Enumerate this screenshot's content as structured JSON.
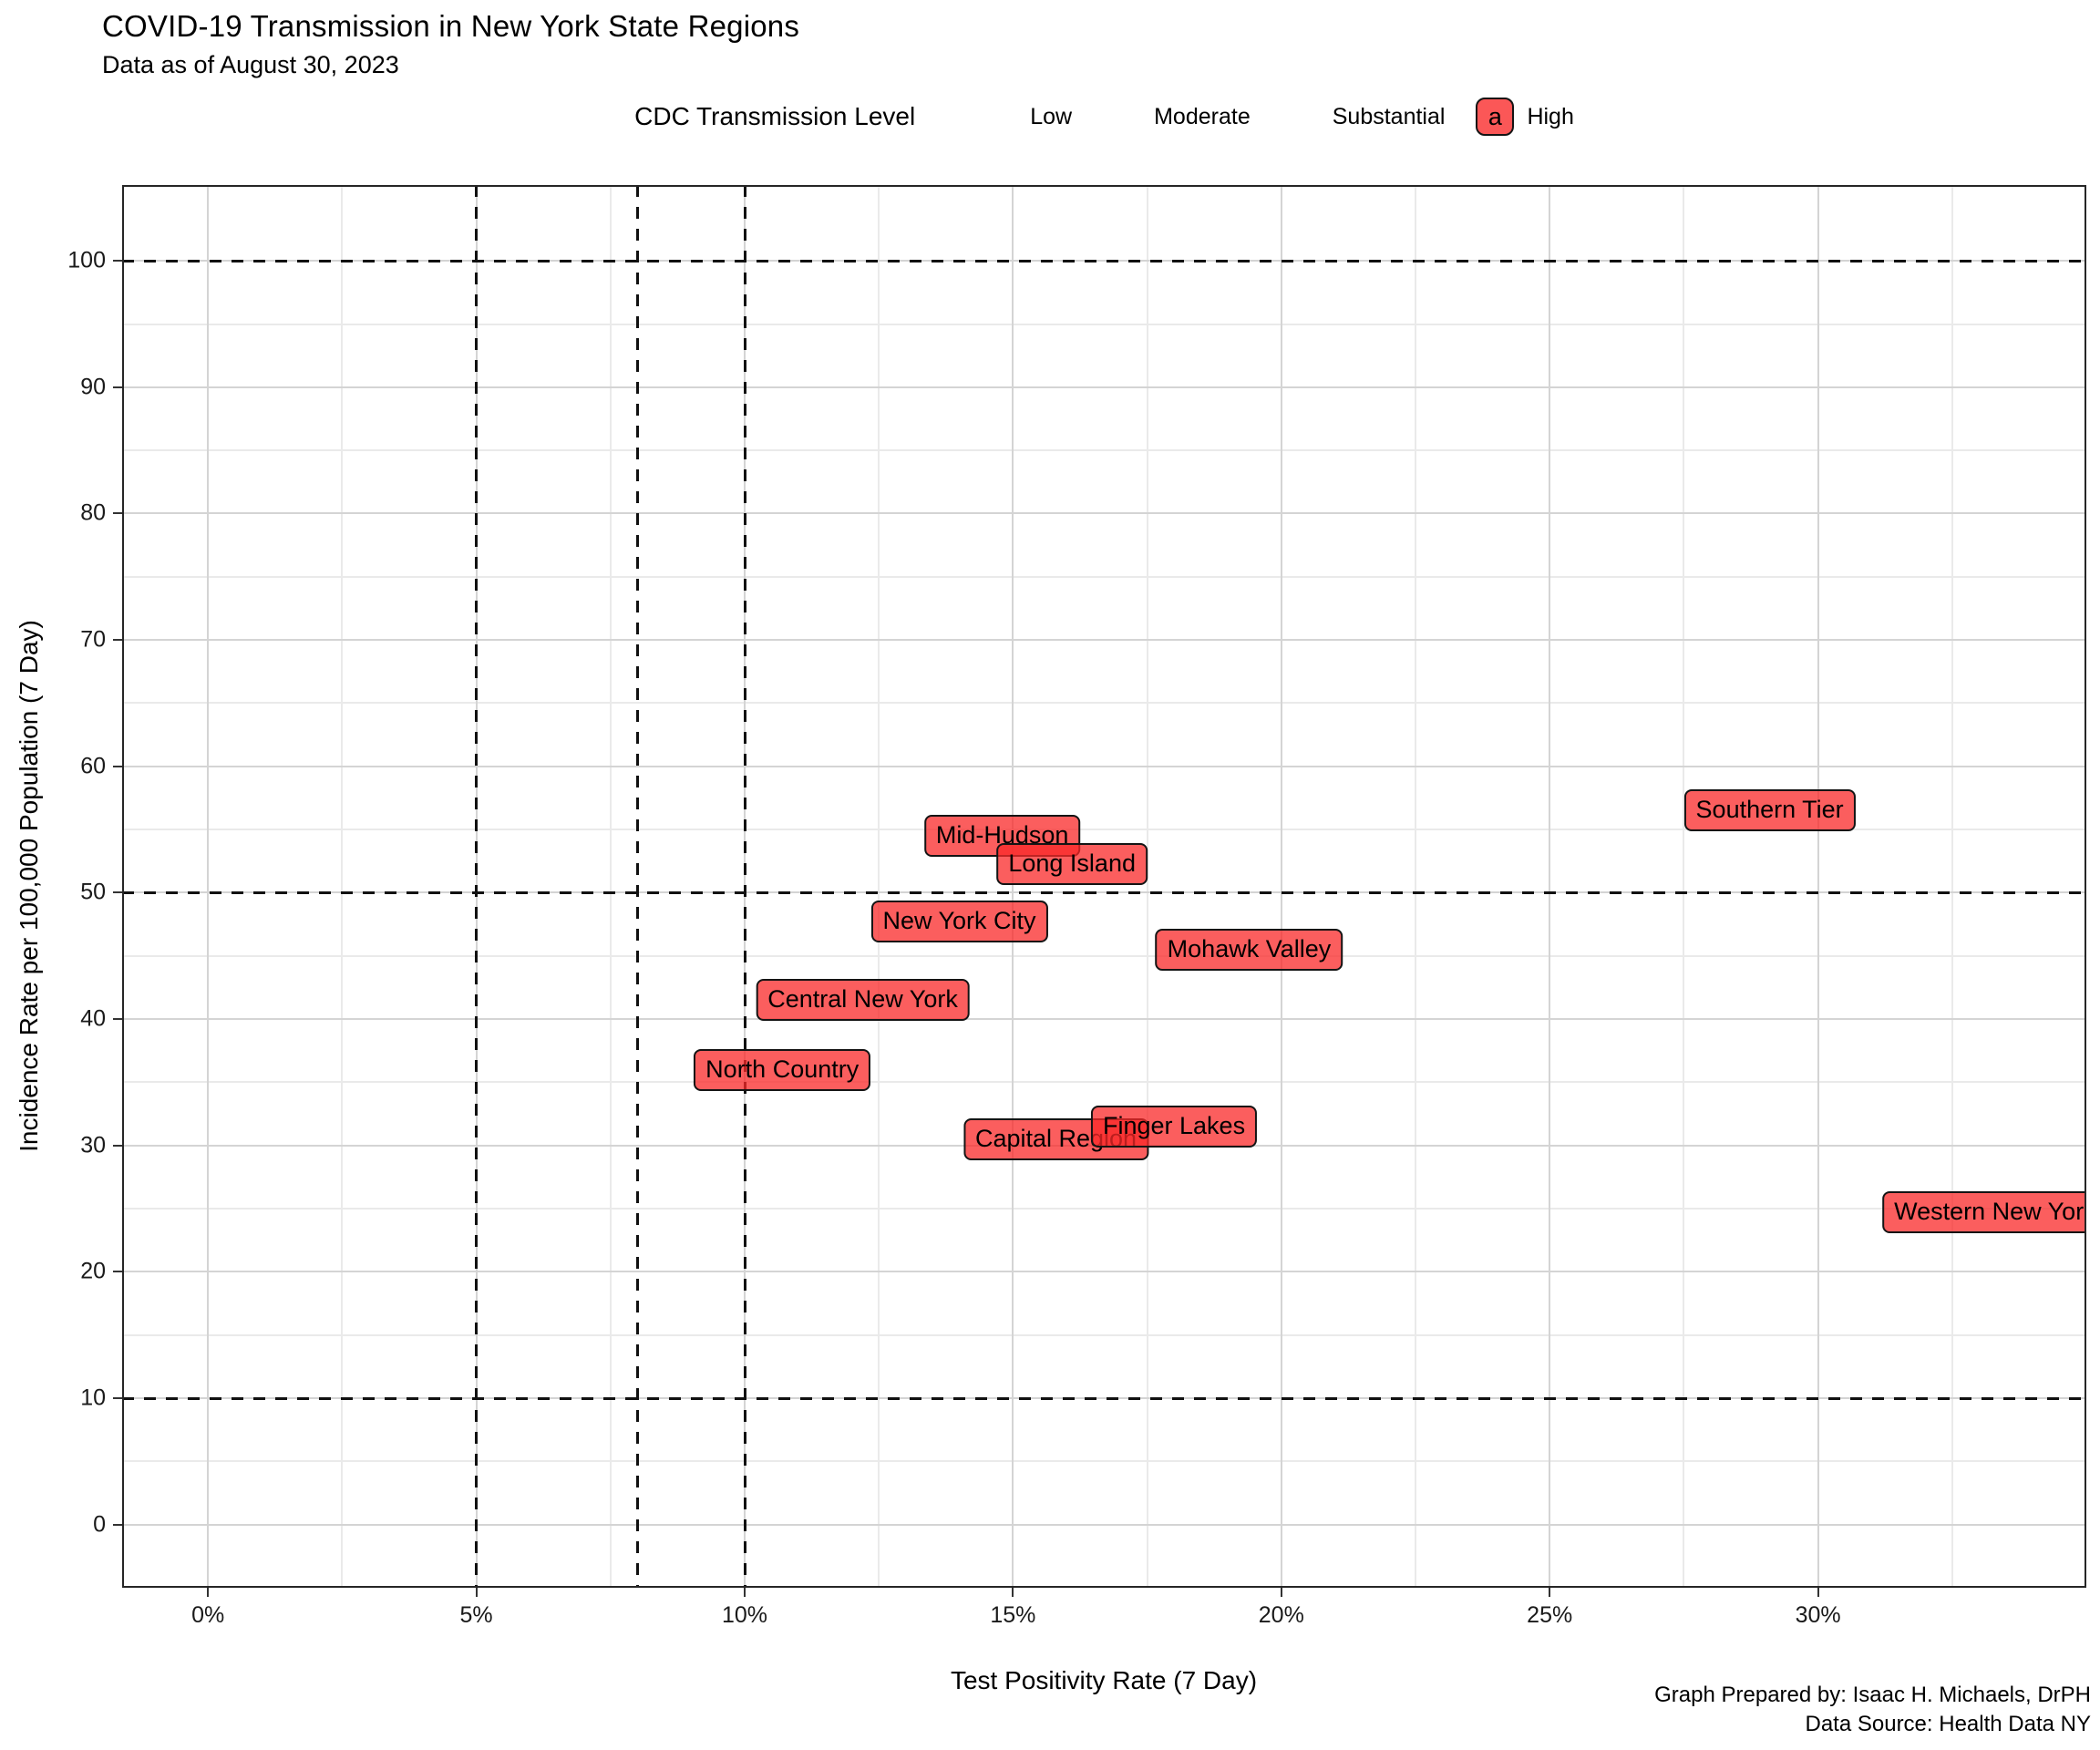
{
  "header": {
    "title": "COVID-19 Transmission in New York State Regions",
    "subtitle": "Data as of August 30, 2023"
  },
  "legend": {
    "title": "CDC Transmission Level",
    "items": [
      {
        "label": "Low",
        "key_glyph": "",
        "key_visible": false
      },
      {
        "label": "Moderate",
        "key_glyph": "",
        "key_visible": false
      },
      {
        "label": "Substantial",
        "key_glyph": "",
        "key_visible": false
      },
      {
        "label": "High",
        "key_glyph": "a",
        "key_visible": true,
        "key_fill": "rgba(250,40,40,0.78)"
      }
    ]
  },
  "chart_data": {
    "type": "scatter",
    "title": "COVID-19 Transmission in New York State Regions",
    "subtitle": "Data as of August 30, 2023",
    "xlabel": "Test Positivity Rate (7 Day)",
    "ylabel": "Incidence Rate per 100,000 Population (7 Day)",
    "x_unit": "percent",
    "xlim": [
      -1.6,
      35.0
    ],
    "ylim": [
      -5,
      106
    ],
    "x_ticks": [
      0,
      5,
      10,
      15,
      20,
      25,
      30
    ],
    "x_tick_labels": [
      "0%",
      "5%",
      "10%",
      "15%",
      "20%",
      "25%",
      "30%"
    ],
    "y_ticks": [
      0,
      10,
      20,
      30,
      40,
      50,
      60,
      70,
      80,
      90,
      100
    ],
    "x_minor_ticks": [
      2.5,
      7.5,
      12.5,
      17.5,
      22.5,
      27.5,
      32.5
    ],
    "y_minor_ticks": [
      5,
      15,
      25,
      35,
      45,
      55,
      65,
      75,
      85,
      95
    ],
    "grid": true,
    "legend_position": "top",
    "reference_lines": {
      "vertical_x": [
        5,
        8,
        10
      ],
      "horizontal_y": [
        10,
        50,
        100
      ],
      "style": "dashed",
      "color": "#111111"
    },
    "transmission_level_shown": "High",
    "label_fill": "rgba(250,40,40,0.75)",
    "points": [
      {
        "region": "Mid-Hudson",
        "x": 14.8,
        "y": 54.5
      },
      {
        "region": "Long Island",
        "x": 16.1,
        "y": 52.3
      },
      {
        "region": "New York City",
        "x": 14.0,
        "y": 47.7
      },
      {
        "region": "Mohawk Valley",
        "x": 19.4,
        "y": 45.5
      },
      {
        "region": "Central New York",
        "x": 12.2,
        "y": 41.5
      },
      {
        "region": "North Country",
        "x": 10.7,
        "y": 36.0
      },
      {
        "region": "Capital Region",
        "x": 15.8,
        "y": 30.5
      },
      {
        "region": "Finger Lakes",
        "x": 18.0,
        "y": 31.5
      },
      {
        "region": "Southern Tier",
        "x": 29.1,
        "y": 56.5
      },
      {
        "region": "Western New York",
        "x": 33.3,
        "y": 24.7
      }
    ]
  },
  "footer": {
    "line1": "Graph Prepared by: Isaac H. Michaels, DrPH",
    "line2": "Data Source: Health Data NY"
  }
}
